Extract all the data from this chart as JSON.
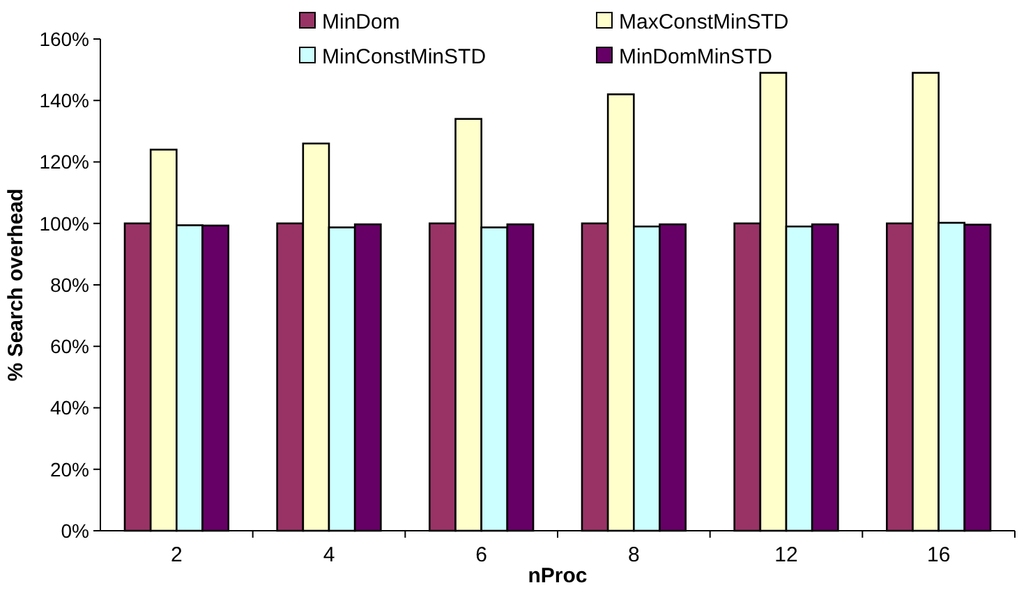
{
  "chart_data": {
    "type": "bar",
    "xlabel": "nProc",
    "ylabel": "% Search overhead",
    "categories": [
      "2",
      "4",
      "6",
      "8",
      "12",
      "16"
    ],
    "series": [
      {
        "name": "MinDom",
        "color": "#993366",
        "values": [
          100,
          100,
          100,
          100,
          100,
          100
        ]
      },
      {
        "name": "MaxConstMinSTD",
        "color": "#ffffcc",
        "values": [
          124,
          126,
          134,
          142,
          149,
          149
        ]
      },
      {
        "name": "MinConstMinSTD",
        "color": "#ccffff",
        "values": [
          99.4,
          98.7,
          98.7,
          99,
          99,
          100.2
        ]
      },
      {
        "name": "MinDomMinSTD",
        "color": "#660066",
        "values": [
          99.3,
          99.7,
          99.7,
          99.7,
          99.7,
          99.6
        ]
      }
    ],
    "ylim": [
      0,
      160
    ],
    "yticks": [
      {
        "value": 0,
        "label": "0%"
      },
      {
        "value": 20,
        "label": "20%"
      },
      {
        "value": 40,
        "label": "40%"
      },
      {
        "value": 60,
        "label": "60%"
      },
      {
        "value": 80,
        "label": "80%"
      },
      {
        "value": 100,
        "label": "100%"
      },
      {
        "value": 120,
        "label": "120%"
      },
      {
        "value": 140,
        "label": "140%"
      },
      {
        "value": 160,
        "label": "160%"
      }
    ],
    "grid": false,
    "legend": "top"
  }
}
